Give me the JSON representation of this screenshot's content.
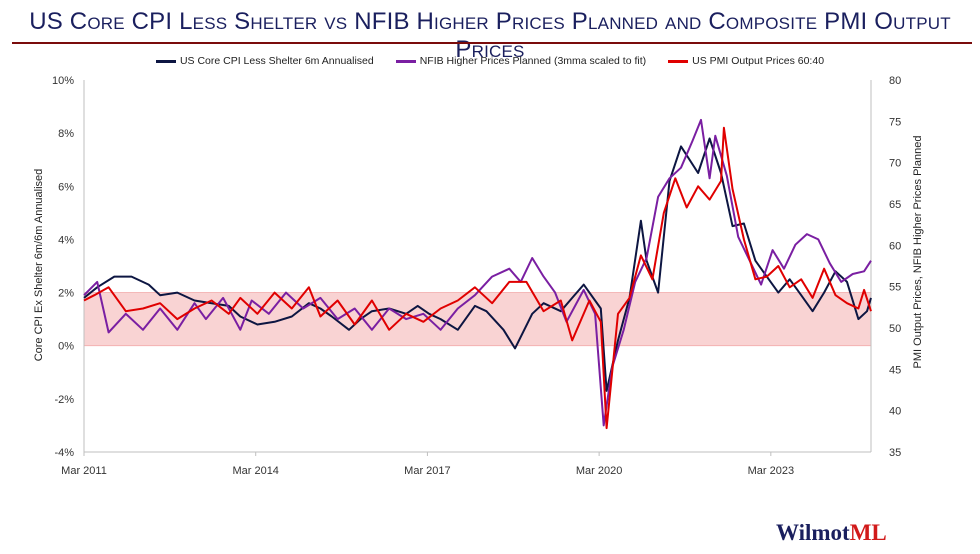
{
  "header": {
    "title": "US Core CPI Less Shelter vs NFIB Higher Prices Planned and Composite PMI Output Prices"
  },
  "brand": {
    "main": "Wilmot",
    "accent": "ML"
  },
  "chart_data": {
    "type": "line",
    "legend_position": "top",
    "grid": false,
    "y_left": {
      "label": "Core CPI Ex Shelter 6m/6m Annualised",
      "lim": [
        -4,
        10
      ],
      "ticks": [
        "10%",
        "8%",
        "6%",
        "4%",
        "2%",
        "0%",
        "-2%",
        "-4%"
      ],
      "tick_values": [
        10,
        8,
        6,
        4,
        2,
        0,
        -2,
        -4
      ]
    },
    "y_right": {
      "label": "PMI Output Prices, NFIB Higher Prices Planned",
      "lim": [
        35,
        80
      ],
      "ticks": [
        "80",
        "75",
        "70",
        "65",
        "60",
        "55",
        "50",
        "45",
        "40",
        "35"
      ],
      "tick_values": [
        80,
        75,
        70,
        65,
        60,
        55,
        50,
        45,
        40,
        35
      ]
    },
    "x_ticks": [
      "Mar 2011",
      "Mar 2014",
      "Mar 2017",
      "Mar 2020",
      "Mar 2023"
    ],
    "x_tick_values": [
      2011.17,
      2014.17,
      2017.17,
      2020.17,
      2023.17
    ],
    "x_range": [
      2011.17,
      2024.92
    ],
    "band": {
      "from": 0,
      "to": 2,
      "color": "#f9d3d3"
    },
    "series": [
      {
        "name": "US Core CPI Less Shelter 6m Annualised",
        "axis": "left",
        "color": "#0d1642",
        "points": [
          [
            2011.17,
            1.8
          ],
          [
            2011.4,
            2.2
          ],
          [
            2011.7,
            2.6
          ],
          [
            2012.0,
            2.6
          ],
          [
            2012.3,
            2.3
          ],
          [
            2012.5,
            1.9
          ],
          [
            2012.8,
            2.0
          ],
          [
            2013.1,
            1.7
          ],
          [
            2013.4,
            1.6
          ],
          [
            2013.7,
            1.5
          ],
          [
            2013.9,
            1.1
          ],
          [
            2014.2,
            0.8
          ],
          [
            2014.5,
            0.9
          ],
          [
            2014.8,
            1.1
          ],
          [
            2015.1,
            1.6
          ],
          [
            2015.3,
            1.4
          ],
          [
            2015.5,
            1.1
          ],
          [
            2015.8,
            0.6
          ],
          [
            2016.0,
            1.0
          ],
          [
            2016.2,
            1.3
          ],
          [
            2016.5,
            1.4
          ],
          [
            2016.8,
            1.2
          ],
          [
            2017.0,
            1.5
          ],
          [
            2017.2,
            1.2
          ],
          [
            2017.4,
            1.0
          ],
          [
            2017.7,
            0.6
          ],
          [
            2018.0,
            1.5
          ],
          [
            2018.2,
            1.3
          ],
          [
            2018.5,
            0.6
          ],
          [
            2018.7,
            -0.1
          ],
          [
            2019.0,
            1.2
          ],
          [
            2019.2,
            1.6
          ],
          [
            2019.5,
            1.3
          ],
          [
            2019.7,
            1.8
          ],
          [
            2019.9,
            2.3
          ],
          [
            2020.2,
            1.4
          ],
          [
            2020.3,
            -1.7
          ],
          [
            2020.5,
            0.2
          ],
          [
            2020.7,
            1.8
          ],
          [
            2020.9,
            4.7
          ],
          [
            2021.0,
            3.2
          ],
          [
            2021.2,
            2.0
          ],
          [
            2021.4,
            6.2
          ],
          [
            2021.6,
            7.5
          ],
          [
            2021.9,
            6.5
          ],
          [
            2022.1,
            7.8
          ],
          [
            2022.3,
            6.5
          ],
          [
            2022.5,
            4.5
          ],
          [
            2022.7,
            4.6
          ],
          [
            2022.9,
            3.2
          ],
          [
            2023.1,
            2.6
          ],
          [
            2023.3,
            2.0
          ],
          [
            2023.5,
            2.5
          ],
          [
            2023.7,
            1.9
          ],
          [
            2023.9,
            1.3
          ],
          [
            2024.1,
            2.0
          ],
          [
            2024.3,
            2.8
          ],
          [
            2024.5,
            2.4
          ],
          [
            2024.7,
            1.0
          ],
          [
            2024.85,
            1.3
          ],
          [
            2024.92,
            1.8
          ]
        ]
      },
      {
        "name": "NFIB Higher Prices Planned (3mma scaled to fit)",
        "axis": "left",
        "color": "#7a1fa2",
        "points": [
          [
            2011.17,
            1.9
          ],
          [
            2011.4,
            2.4
          ],
          [
            2011.6,
            0.5
          ],
          [
            2011.9,
            1.2
          ],
          [
            2012.2,
            0.6
          ],
          [
            2012.5,
            1.4
          ],
          [
            2012.8,
            0.6
          ],
          [
            2013.1,
            1.6
          ],
          [
            2013.3,
            1.0
          ],
          [
            2013.6,
            1.8
          ],
          [
            2013.9,
            0.6
          ],
          [
            2014.1,
            1.7
          ],
          [
            2014.4,
            1.2
          ],
          [
            2014.7,
            2.0
          ],
          [
            2015.0,
            1.4
          ],
          [
            2015.3,
            1.8
          ],
          [
            2015.6,
            1.0
          ],
          [
            2015.9,
            1.4
          ],
          [
            2016.2,
            0.6
          ],
          [
            2016.5,
            1.4
          ],
          [
            2016.8,
            1.0
          ],
          [
            2017.1,
            1.2
          ],
          [
            2017.4,
            0.6
          ],
          [
            2017.7,
            1.4
          ],
          [
            2018.0,
            1.9
          ],
          [
            2018.3,
            2.6
          ],
          [
            2018.6,
            2.9
          ],
          [
            2018.8,
            2.4
          ],
          [
            2019.0,
            3.3
          ],
          [
            2019.2,
            2.6
          ],
          [
            2019.4,
            2.0
          ],
          [
            2019.6,
            0.9
          ],
          [
            2019.9,
            2.1
          ],
          [
            2020.1,
            1.2
          ],
          [
            2020.25,
            -3.0
          ],
          [
            2020.4,
            -0.8
          ],
          [
            2020.6,
            0.6
          ],
          [
            2020.8,
            2.4
          ],
          [
            2021.0,
            3.3
          ],
          [
            2021.2,
            5.6
          ],
          [
            2021.4,
            6.3
          ],
          [
            2021.6,
            6.7
          ],
          [
            2021.8,
            7.7
          ],
          [
            2021.95,
            8.5
          ],
          [
            2022.1,
            6.3
          ],
          [
            2022.2,
            7.9
          ],
          [
            2022.4,
            6.4
          ],
          [
            2022.6,
            4.1
          ],
          [
            2022.8,
            3.2
          ],
          [
            2023.0,
            2.3
          ],
          [
            2023.2,
            3.6
          ],
          [
            2023.4,
            2.9
          ],
          [
            2023.6,
            3.8
          ],
          [
            2023.8,
            4.2
          ],
          [
            2024.0,
            4.0
          ],
          [
            2024.2,
            3.1
          ],
          [
            2024.4,
            2.4
          ],
          [
            2024.6,
            2.7
          ],
          [
            2024.8,
            2.8
          ],
          [
            2024.92,
            3.2
          ]
        ]
      },
      {
        "name": "US PMI Output Prices 60:40",
        "axis": "left",
        "color": "#e00000",
        "points": [
          [
            2011.17,
            1.7
          ],
          [
            2011.35,
            1.9
          ],
          [
            2011.6,
            2.2
          ],
          [
            2011.9,
            1.3
          ],
          [
            2012.2,
            1.4
          ],
          [
            2012.5,
            1.6
          ],
          [
            2012.8,
            1.0
          ],
          [
            2013.1,
            1.4
          ],
          [
            2013.4,
            1.7
          ],
          [
            2013.7,
            1.2
          ],
          [
            2013.9,
            1.8
          ],
          [
            2014.2,
            1.2
          ],
          [
            2014.5,
            2.0
          ],
          [
            2014.8,
            1.4
          ],
          [
            2015.1,
            2.2
          ],
          [
            2015.3,
            1.1
          ],
          [
            2015.6,
            1.7
          ],
          [
            2015.9,
            0.8
          ],
          [
            2016.2,
            1.7
          ],
          [
            2016.5,
            0.6
          ],
          [
            2016.8,
            1.2
          ],
          [
            2017.1,
            0.9
          ],
          [
            2017.4,
            1.4
          ],
          [
            2017.7,
            1.7
          ],
          [
            2018.0,
            2.2
          ],
          [
            2018.3,
            1.6
          ],
          [
            2018.6,
            2.4
          ],
          [
            2018.9,
            2.4
          ],
          [
            2019.2,
            1.3
          ],
          [
            2019.5,
            1.7
          ],
          [
            2019.7,
            0.2
          ],
          [
            2020.0,
            1.7
          ],
          [
            2020.2,
            0.9
          ],
          [
            2020.3,
            -3.1
          ],
          [
            2020.5,
            1.2
          ],
          [
            2020.7,
            1.8
          ],
          [
            2020.9,
            3.4
          ],
          [
            2021.1,
            2.5
          ],
          [
            2021.3,
            5.0
          ],
          [
            2021.5,
            6.3
          ],
          [
            2021.7,
            5.2
          ],
          [
            2021.9,
            6.0
          ],
          [
            2022.1,
            5.5
          ],
          [
            2022.3,
            6.2
          ],
          [
            2022.35,
            8.2
          ],
          [
            2022.5,
            5.9
          ],
          [
            2022.7,
            4.0
          ],
          [
            2022.9,
            2.5
          ],
          [
            2023.1,
            2.6
          ],
          [
            2023.3,
            3.0
          ],
          [
            2023.5,
            2.2
          ],
          [
            2023.7,
            2.5
          ],
          [
            2023.9,
            1.8
          ],
          [
            2024.1,
            2.9
          ],
          [
            2024.3,
            1.9
          ],
          [
            2024.5,
            1.6
          ],
          [
            2024.7,
            1.4
          ],
          [
            2024.8,
            2.1
          ],
          [
            2024.92,
            1.3
          ]
        ]
      }
    ]
  }
}
